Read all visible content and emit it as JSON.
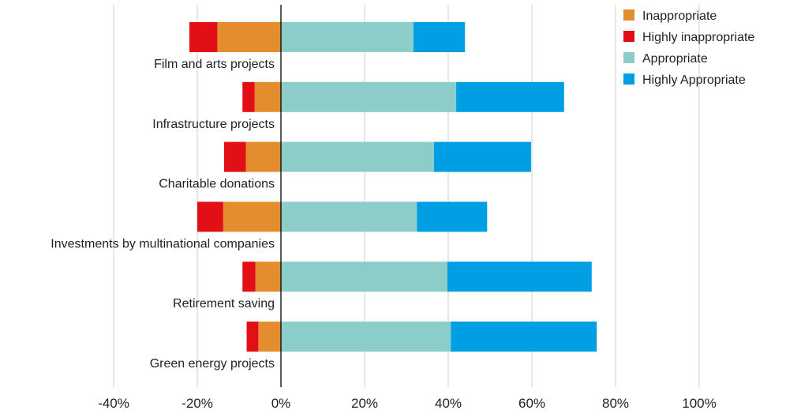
{
  "chart_data": {
    "type": "bar",
    "orientation": "horizontal",
    "stacked": "diverging",
    "title": "",
    "xlabel": "",
    "ylabel": "",
    "xlim": [
      -40,
      100
    ],
    "x_ticks": [
      -40,
      -20,
      0,
      20,
      40,
      60,
      80,
      100
    ],
    "x_tick_labels": [
      "-40%",
      "-20%",
      "0%",
      "20%",
      "40%",
      "60%",
      "80%",
      "100%"
    ],
    "grid": "vertical",
    "legend_position": "top-right",
    "categories": [
      "Film and arts projects",
      "Infrastructure projects",
      "Charitable donations",
      "Investments by multinational companies",
      "Retirement saving",
      "Green energy projects"
    ],
    "series": [
      {
        "name": "Inappropriate",
        "color": "#e38d2e",
        "values": [
          -15.2,
          -6.3,
          -8.4,
          -13.8,
          -6.1,
          -5.4
        ]
      },
      {
        "name": "Highly inappropriate",
        "color": "#e30f17",
        "values": [
          -6.7,
          -2.9,
          -5.2,
          -6.2,
          -3.1,
          -2.8
        ]
      },
      {
        "name": "Appropriate",
        "color": "#8dcdc9",
        "values": [
          31.7,
          41.9,
          36.6,
          32.5,
          39.8,
          40.6
        ]
      },
      {
        "name": "Highly Appropriate",
        "color": "#009fe3",
        "values": [
          12.3,
          25.8,
          23.2,
          16.8,
          34.5,
          34.9
        ]
      }
    ],
    "legend_order": [
      "Inappropriate",
      "Highly inappropriate",
      "Appropriate",
      "Highly Appropriate"
    ]
  }
}
